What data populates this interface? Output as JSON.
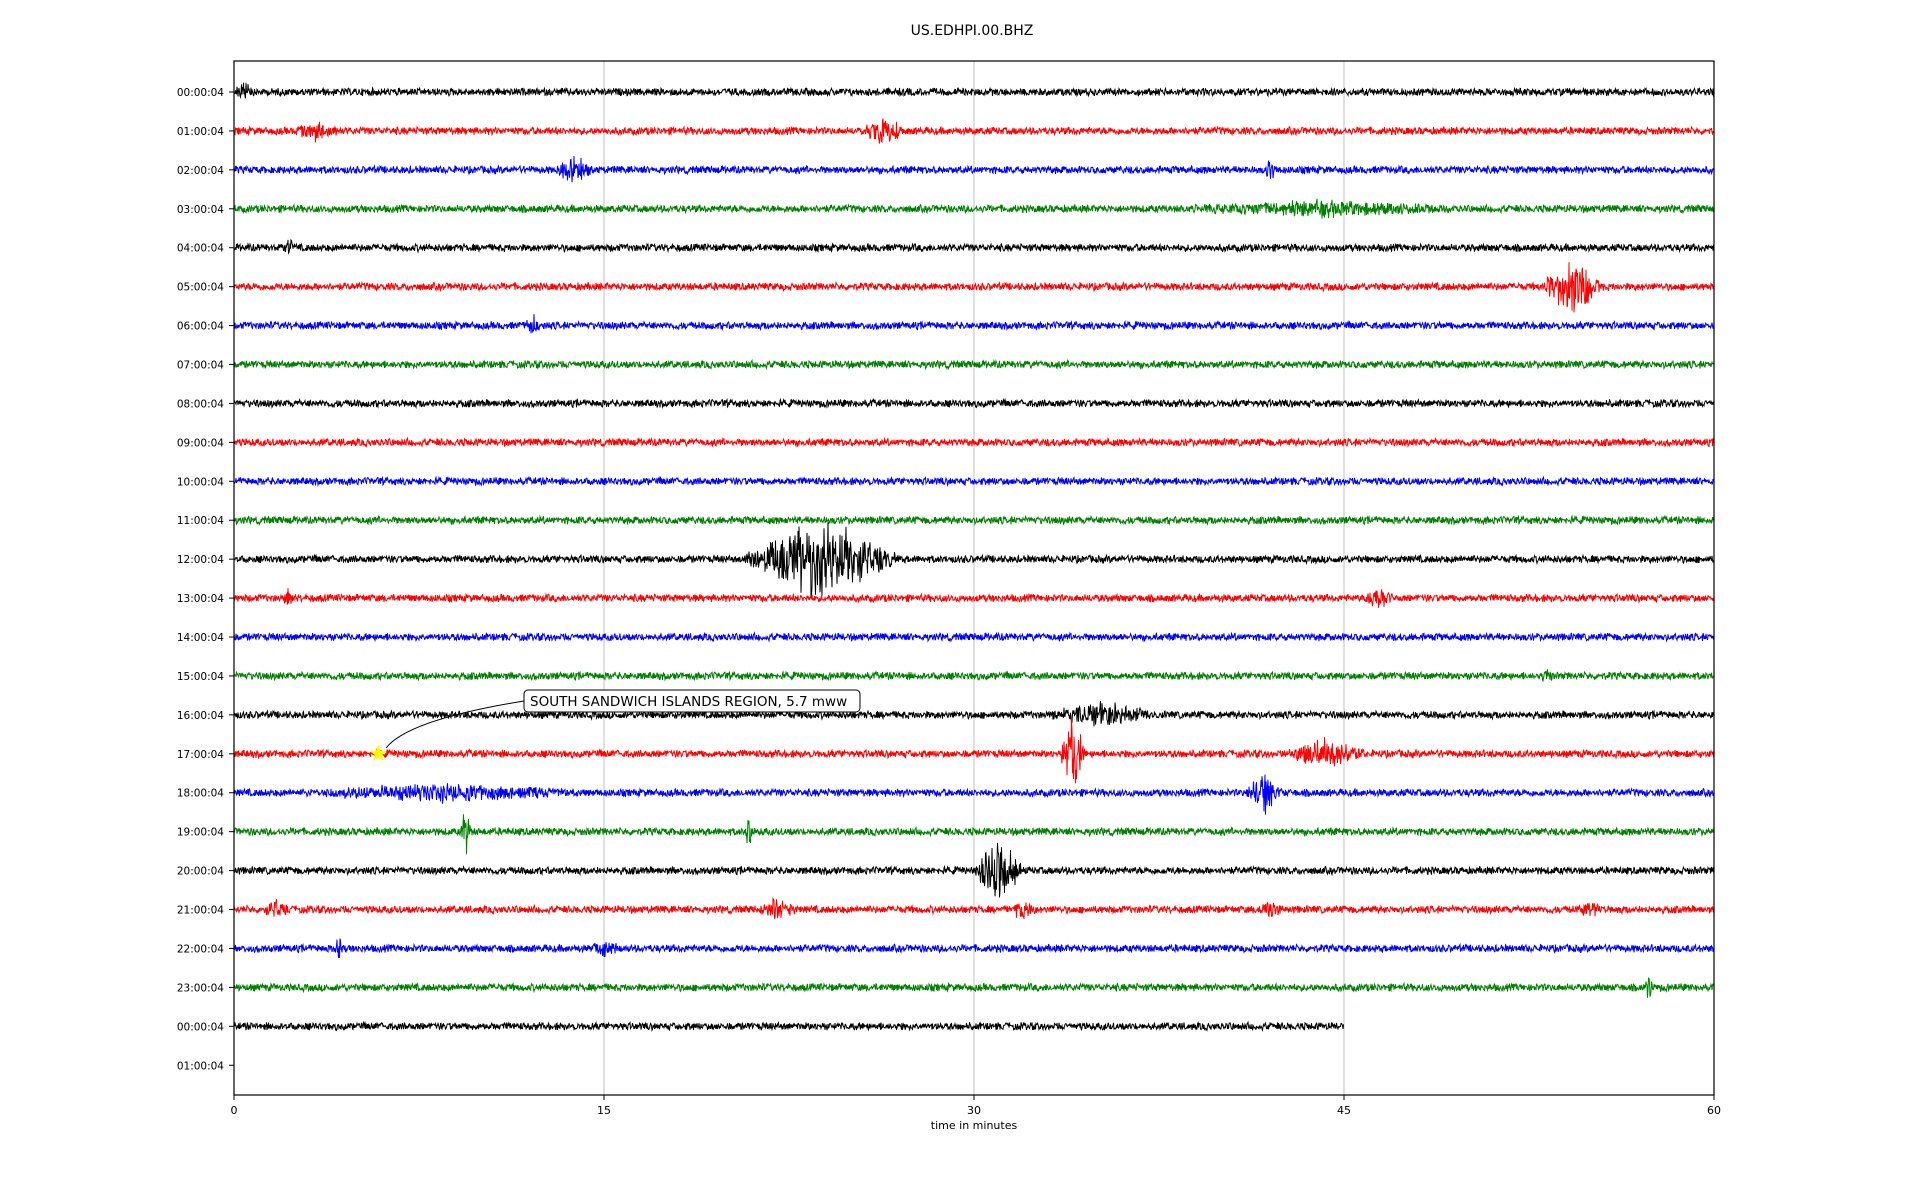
{
  "chart_data": {
    "type": "line",
    "title": "US.EDHPI.00.BHZ",
    "xlabel": "time in minutes",
    "ylabel": "",
    "xlim": [
      0,
      60
    ],
    "x_ticks": [
      0,
      15,
      30,
      45,
      60
    ],
    "x_tick_labels": [
      "0",
      "15",
      "30",
      "45",
      "60"
    ],
    "grid": "vertical",
    "row_labels": [
      "00:00:04",
      "01:00:04",
      "02:00:04",
      "03:00:04",
      "04:00:04",
      "05:00:04",
      "06:00:04",
      "07:00:04",
      "08:00:04",
      "09:00:04",
      "10:00:04",
      "11:00:04",
      "12:00:04",
      "13:00:04",
      "14:00:04",
      "15:00:04",
      "16:00:04",
      "17:00:04",
      "18:00:04",
      "19:00:04",
      "20:00:04",
      "21:00:04",
      "22:00:04",
      "23:00:04",
      "00:00:04",
      "01:00:04"
    ],
    "trace_colors": [
      "#000000",
      "#ff0000",
      "#0000ff",
      "#008000"
    ],
    "last_trace_end_minutes": 45,
    "event_bursts": [
      {
        "row": 0,
        "start": 0,
        "end": 0.8,
        "amp": 0.35
      },
      {
        "row": 1,
        "start": 2.5,
        "end": 4.2,
        "amp": 0.35
      },
      {
        "row": 1,
        "start": 25.5,
        "end": 27.2,
        "amp": 0.55
      },
      {
        "row": 2,
        "start": 13.0,
        "end": 14.6,
        "amp": 0.5
      },
      {
        "row": 2,
        "start": 41.8,
        "end": 42.2,
        "amp": 0.6
      },
      {
        "row": 3,
        "start": 38.5,
        "end": 49.5,
        "amp": 0.25
      },
      {
        "row": 4,
        "start": 2.0,
        "end": 2.5,
        "amp": 0.35
      },
      {
        "row": 5,
        "start": 53.0,
        "end": 55.6,
        "amp": 1.3
      },
      {
        "row": 6,
        "start": 11.8,
        "end": 12.4,
        "amp": 0.45
      },
      {
        "row": 12,
        "start": 20.5,
        "end": 27.0,
        "amp": 1.7
      },
      {
        "row": 13,
        "start": 45.8,
        "end": 47.0,
        "amp": 0.45
      },
      {
        "row": 13,
        "start": 2.0,
        "end": 2.4,
        "amp": 0.35
      },
      {
        "row": 15,
        "start": 53.0,
        "end": 53.5,
        "amp": 0.3
      },
      {
        "row": 16,
        "start": 33.0,
        "end": 37.5,
        "amp": 0.45
      },
      {
        "row": 17,
        "start": 33.5,
        "end": 34.5,
        "amp": 1.9
      },
      {
        "row": 17,
        "start": 42.5,
        "end": 46.0,
        "amp": 0.55
      },
      {
        "row": 18,
        "start": 2.8,
        "end": 14.2,
        "amp": 0.28
      },
      {
        "row": 18,
        "start": 41.0,
        "end": 42.5,
        "amp": 0.85
      },
      {
        "row": 19,
        "start": 9.2,
        "end": 9.6,
        "amp": 1.3
      },
      {
        "row": 19,
        "start": 20.7,
        "end": 21.0,
        "amp": 0.9
      },
      {
        "row": 20,
        "start": 30.0,
        "end": 32.0,
        "amp": 1.4
      },
      {
        "row": 21,
        "start": 1.2,
        "end": 2.2,
        "amp": 0.35
      },
      {
        "row": 21,
        "start": 21.2,
        "end": 22.8,
        "amp": 0.4
      },
      {
        "row": 21,
        "start": 31.5,
        "end": 32.5,
        "amp": 0.35
      },
      {
        "row": 21,
        "start": 41.5,
        "end": 42.5,
        "amp": 0.35
      },
      {
        "row": 21,
        "start": 54.5,
        "end": 55.5,
        "amp": 0.35
      },
      {
        "row": 22,
        "start": 4.1,
        "end": 4.4,
        "amp": 0.45
      },
      {
        "row": 22,
        "start": 14.5,
        "end": 15.6,
        "amp": 0.35
      },
      {
        "row": 23,
        "start": 57.2,
        "end": 57.5,
        "amp": 0.7
      }
    ],
    "annotation": {
      "text": "SOUTH SANDWICH ISLANDS REGION, 5.7 mww",
      "row": 17,
      "minute": 5.85,
      "marker": "star",
      "marker_color": "#ffff00"
    }
  }
}
